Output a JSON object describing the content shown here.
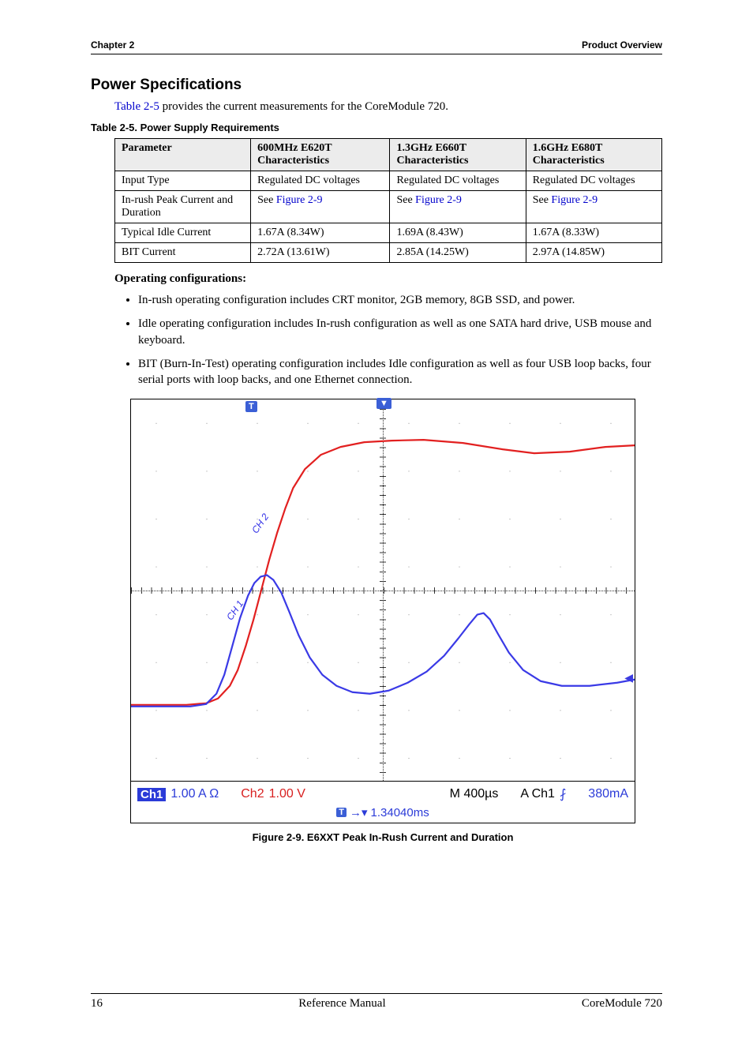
{
  "header": {
    "chapter": "Chapter 2",
    "section": "Product Overview"
  },
  "title": "Power Specifications",
  "intro_prefix": "Table 2-5",
  "intro_rest": " provides the current measurements for the CoreModule 720.",
  "table_caption": "Table 2-5.   Power Supply Requirements",
  "table": {
    "headers": [
      "Parameter",
      "600MHz E620T Characteristics",
      "1.3GHz E660T Characteristics",
      "1.6GHz E680T Characteristics"
    ],
    "rows": [
      {
        "param": "Input Type",
        "c1": "Regulated DC voltages",
        "c2": "Regulated DC voltages",
        "c3": "Regulated DC voltages"
      },
      {
        "param": "In-rush Peak Current and Duration",
        "c1_pre": "See ",
        "c1_link": "Figure 2-9",
        "c2_pre": "See ",
        "c2_link": "Figure 2-9",
        "c3_pre": "See ",
        "c3_link": "Figure 2-9"
      },
      {
        "param": "Typical Idle Current",
        "c1": "1.67A (8.34W)",
        "c2": "1.69A (8.43W)",
        "c3": "1.67A (8.33W)"
      },
      {
        "param": "BIT Current",
        "c1": "2.72A (13.61W)",
        "c2": "2.85A (14.25W)",
        "c3": "2.97A (14.85W)"
      }
    ]
  },
  "op_title": "Operating configurations:",
  "bullets": [
    "In-rush operating configuration includes CRT monitor, 2GB memory, 8GB SSD, and power.",
    "Idle operating configuration includes In-rush configuration as well as one SATA hard drive, USB mouse and keyboard.",
    "BIT (Burn-In-Test) operating configuration includes Idle configuration as well as four USB loop backs, four serial ports with loop backs, and one Ethernet connection."
  ],
  "figure": {
    "caption": "Figure  2-9.   E6XXT Peak In-Rush Current and Duration",
    "grid": {
      "cols": 10,
      "rows": 8,
      "minor_per_major": 5
    },
    "colors": {
      "ch1": "#3a3ae6",
      "ch2": "#e22020",
      "grid": "#555555",
      "bg": "#ffffff",
      "badge": "#2b3bd8"
    },
    "line_width": 2.2,
    "ch1_label": "CH 1",
    "ch2_label": "CH 2",
    "traces": {
      "ch2": [
        [
          0,
          386
        ],
        [
          40,
          386
        ],
        [
          70,
          386
        ],
        [
          95,
          384
        ],
        [
          110,
          378
        ],
        [
          125,
          362
        ],
        [
          135,
          342
        ],
        [
          145,
          312
        ],
        [
          155,
          278
        ],
        [
          165,
          240
        ],
        [
          175,
          202
        ],
        [
          185,
          168
        ],
        [
          195,
          138
        ],
        [
          205,
          112
        ],
        [
          220,
          88
        ],
        [
          240,
          70
        ],
        [
          265,
          60
        ],
        [
          295,
          54
        ],
        [
          330,
          52
        ],
        [
          370,
          51
        ],
        [
          420,
          55
        ],
        [
          470,
          63
        ],
        [
          510,
          68
        ],
        [
          555,
          66
        ],
        [
          600,
          60
        ],
        [
          637,
          58
        ]
      ],
      "ch1": [
        [
          0,
          388
        ],
        [
          45,
          388
        ],
        [
          75,
          388
        ],
        [
          95,
          385
        ],
        [
          108,
          372
        ],
        [
          118,
          348
        ],
        [
          128,
          312
        ],
        [
          138,
          276
        ],
        [
          148,
          248
        ],
        [
          156,
          232
        ],
        [
          164,
          224
        ],
        [
          172,
          222
        ],
        [
          180,
          228
        ],
        [
          190,
          244
        ],
        [
          200,
          268
        ],
        [
          212,
          298
        ],
        [
          226,
          326
        ],
        [
          242,
          348
        ],
        [
          260,
          362
        ],
        [
          280,
          370
        ],
        [
          302,
          372
        ],
        [
          326,
          368
        ],
        [
          350,
          358
        ],
        [
          374,
          344
        ],
        [
          396,
          324
        ],
        [
          414,
          302
        ],
        [
          428,
          284
        ],
        [
          438,
          272
        ],
        [
          446,
          270
        ],
        [
          454,
          278
        ],
        [
          464,
          296
        ],
        [
          478,
          320
        ],
        [
          496,
          342
        ],
        [
          518,
          356
        ],
        [
          545,
          362
        ],
        [
          580,
          362
        ],
        [
          615,
          358
        ],
        [
          637,
          354
        ]
      ]
    },
    "readout": {
      "ch1_badge": "Ch1",
      "ch1_scale": "1.00 A Ω",
      "ch2_label": "Ch2",
      "ch2_scale": "1.00 V",
      "timebase": "M 400µs",
      "trig_src": "A  Ch1",
      "edge_glyph": "⨏",
      "trig_level": "380mA",
      "delay_glyph": "→▾",
      "delay": "1.34040ms"
    }
  },
  "footer": {
    "page": "16",
    "center": "Reference Manual",
    "right": "CoreModule 720"
  }
}
